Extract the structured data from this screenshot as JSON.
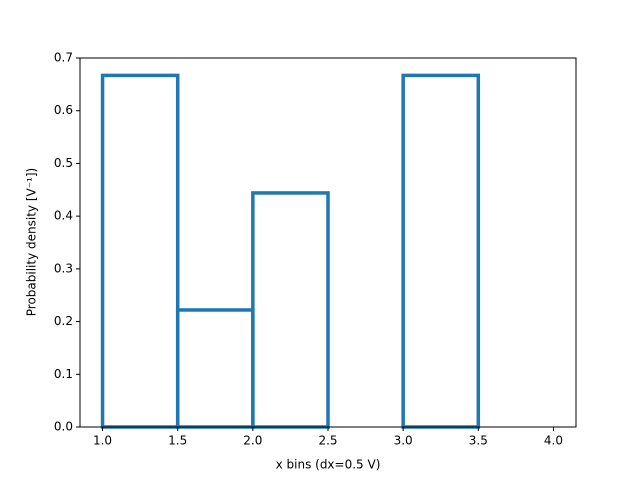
{
  "chart_data": {
    "type": "histogram",
    "bins": [
      1.0,
      1.5,
      2.0,
      2.5,
      3.0,
      3.5,
      4.0
    ],
    "values": [
      0.667,
      0.222,
      0.444,
      0,
      0.667,
      0
    ],
    "color": "#1f77b4",
    "xlabel": "x bins (dx=0.5 V)",
    "ylabel": "Probability density [V⁻¹])",
    "xlim": [
      0.85,
      4.15
    ],
    "ylim": [
      0,
      0.7
    ],
    "xticks": [
      {
        "value": 1.0,
        "label": "1.0"
      },
      {
        "value": 1.5,
        "label": "1.5"
      },
      {
        "value": 2.0,
        "label": "2.0"
      },
      {
        "value": 2.5,
        "label": "2.5"
      },
      {
        "value": 3.0,
        "label": "3.0"
      },
      {
        "value": 3.5,
        "label": "3.5"
      },
      {
        "value": 4.0,
        "label": "4.0"
      }
    ],
    "yticks": [
      {
        "value": 0,
        "label": "0.0"
      },
      0.1,
      0.2,
      0.3,
      0.4,
      0.5,
      0.6,
      0.7
    ]
  }
}
